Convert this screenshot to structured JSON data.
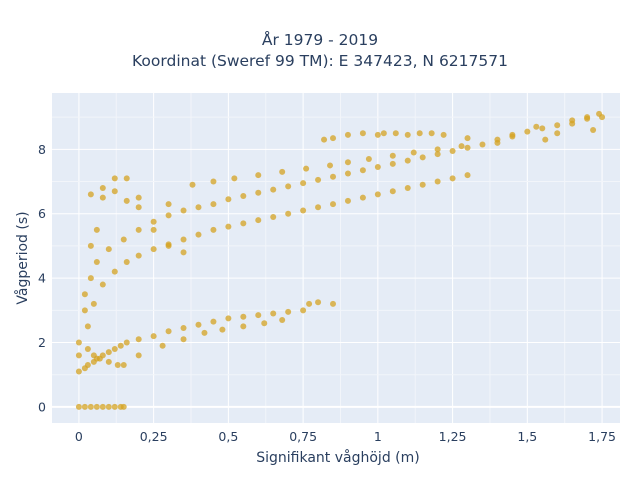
{
  "chart_data": {
    "type": "scatter",
    "title": "År 1979 - 2019",
    "subtitle": "Koordinat (Sweref 99 TM): E 347423, N 6217571",
    "xlabel": "Signifikant våghöjd (m)",
    "ylabel": "Vågperiod (s)",
    "xlim": [
      -0.09,
      1.81
    ],
    "ylim": [
      -0.5,
      9.75
    ],
    "x_ticks": [
      0,
      0.25,
      0.5,
      0.75,
      1,
      1.25,
      1.5,
      1.75
    ],
    "x_tick_labels": [
      "0",
      "0,25",
      "0,5",
      "0,75",
      "1",
      "1,25",
      "1,5",
      "1,75"
    ],
    "y_ticks": [
      0,
      2,
      4,
      6,
      8
    ],
    "y_tick_labels": [
      "0",
      "2",
      "4",
      "6",
      "8"
    ],
    "grid": true,
    "legend": "none",
    "marker_color": "#d4a321",
    "plot_background": "#e5ecf6",
    "series": [
      {
        "name": "",
        "x": [
          0.0,
          0.02,
          0.04,
          0.06,
          0.08,
          0.1,
          0.12,
          0.14,
          0.15,
          0.0,
          0.02,
          0.03,
          0.05,
          0.06,
          0.08,
          0.1,
          0.12,
          0.14,
          0.16,
          0.2,
          0.25,
          0.3,
          0.35,
          0.4,
          0.45,
          0.5,
          0.55,
          0.6,
          0.65,
          0.7,
          0.75,
          0.02,
          0.04,
          0.06,
          0.1,
          0.15,
          0.2,
          0.25,
          0.3,
          0.35,
          0.4,
          0.45,
          0.5,
          0.55,
          0.6,
          0.65,
          0.7,
          0.75,
          0.8,
          0.85,
          0.9,
          0.95,
          1.0,
          1.05,
          1.1,
          1.15,
          1.2,
          1.25,
          1.3,
          1.35,
          1.4,
          1.45,
          1.5,
          1.55,
          1.6,
          1.65,
          1.7,
          1.74,
          0.03,
          0.05,
          0.08,
          0.12,
          0.16,
          0.2,
          0.25,
          0.3,
          0.35,
          0.4,
          0.45,
          0.5,
          0.55,
          0.6,
          0.65,
          0.7,
          0.75,
          0.8,
          0.85,
          0.9,
          0.95,
          1.0,
          1.05,
          1.1,
          1.15,
          1.2,
          1.25,
          1.3,
          0.82,
          0.85,
          0.9,
          0.95,
          1.0,
          1.02,
          1.06,
          1.1,
          1.14,
          1.18,
          1.22,
          1.3,
          1.4,
          1.45,
          1.53,
          1.56,
          1.6,
          1.65,
          1.7,
          1.72,
          1.75,
          0.04,
          0.08,
          0.12,
          0.16,
          0.2,
          0.3,
          0.38,
          0.45,
          0.52,
          0.6,
          0.68,
          0.76,
          0.84,
          0.9,
          0.97,
          1.05,
          1.12,
          1.2,
          1.28,
          0.0,
          0.03,
          0.05,
          0.07,
          0.1,
          0.13,
          0.15,
          0.2,
          0.28,
          0.35,
          0.42,
          0.48,
          0.55,
          0.62,
          0.68,
          0.77,
          0.8,
          0.85,
          0.0,
          0.02,
          0.04,
          0.06,
          0.08,
          0.12,
          0.16,
          0.2,
          0.25,
          0.3,
          0.35
        ],
        "y": [
          0.0,
          0.0,
          0.0,
          0.0,
          0.0,
          0.0,
          0.0,
          0.0,
          0.0,
          1.1,
          1.2,
          1.3,
          1.4,
          1.5,
          1.6,
          1.7,
          1.8,
          1.9,
          2.0,
          2.1,
          2.2,
          2.35,
          2.45,
          2.55,
          2.65,
          2.75,
          2.8,
          2.85,
          2.9,
          2.95,
          3.0,
          3.5,
          4.0,
          4.5,
          4.9,
          5.2,
          5.5,
          5.75,
          5.95,
          6.1,
          6.2,
          6.3,
          6.45,
          6.55,
          6.65,
          6.75,
          6.85,
          6.95,
          7.05,
          7.15,
          7.25,
          7.35,
          7.45,
          7.55,
          7.65,
          7.75,
          7.85,
          7.95,
          8.05,
          8.15,
          8.3,
          8.45,
          8.55,
          8.65,
          8.75,
          8.8,
          8.95,
          9.1,
          2.5,
          3.2,
          3.8,
          4.2,
          4.5,
          4.7,
          4.9,
          5.05,
          5.2,
          5.35,
          5.5,
          5.6,
          5.7,
          5.8,
          5.9,
          6.0,
          6.1,
          6.2,
          6.3,
          6.4,
          6.5,
          6.6,
          6.7,
          6.8,
          6.9,
          7.0,
          7.1,
          7.2,
          8.3,
          8.35,
          8.45,
          8.5,
          8.45,
          8.5,
          8.5,
          8.45,
          8.5,
          8.5,
          8.45,
          8.35,
          8.2,
          8.4,
          8.7,
          8.3,
          8.5,
          8.9,
          9.0,
          8.6,
          9.0,
          6.6,
          6.8,
          7.1,
          6.4,
          6.5,
          6.3,
          6.9,
          7.0,
          7.1,
          7.2,
          7.3,
          7.4,
          7.5,
          7.6,
          7.7,
          7.8,
          7.9,
          8.0,
          8.1,
          2.0,
          1.8,
          1.6,
          1.5,
          1.4,
          1.3,
          1.3,
          1.6,
          1.9,
          2.1,
          2.3,
          2.4,
          2.5,
          2.6,
          2.7,
          3.2,
          3.25,
          3.2,
          1.6,
          3.0,
          5.0,
          5.5,
          6.5,
          6.7,
          7.1,
          6.2,
          5.5,
          5.0,
          4.8
        ]
      }
    ]
  }
}
